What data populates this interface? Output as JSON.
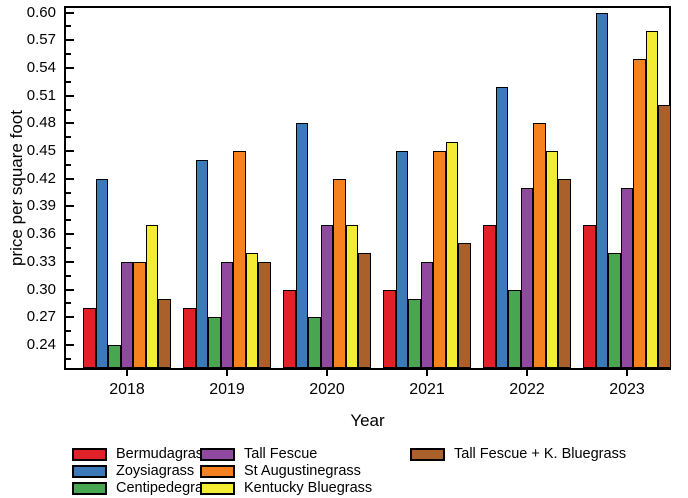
{
  "figure": {
    "background": "#ffffff",
    "frame_color": "#000000",
    "bar_edge_color": "#000000"
  },
  "chart_data": {
    "type": "bar",
    "title": "",
    "xlabel": "Year",
    "ylabel": "price per square foot",
    "categories": [
      "2018",
      "2019",
      "2020",
      "2021",
      "2022",
      "2023"
    ],
    "series": [
      {
        "name": "Bermudagrass",
        "color": "#e12128",
        "values": [
          0.28,
          0.28,
          0.3,
          0.3,
          0.37,
          0.37
        ]
      },
      {
        "name": "Zoysiagrass",
        "color": "#3c79b8",
        "values": [
          0.42,
          0.44,
          0.48,
          0.45,
          0.52,
          0.6
        ]
      },
      {
        "name": "Centipedegrass",
        "color": "#48a650",
        "values": [
          0.24,
          0.27,
          0.27,
          0.29,
          0.3,
          0.34
        ]
      },
      {
        "name": "Tall Fescue",
        "color": "#90499e",
        "values": [
          0.33,
          0.33,
          0.37,
          0.33,
          0.41,
          0.41
        ]
      },
      {
        "name": "St Augustinegrass",
        "color": "#f5811f",
        "values": [
          0.33,
          0.45,
          0.42,
          0.45,
          0.48,
          0.55
        ]
      },
      {
        "name": "Kentucky Bluegrass",
        "color": "#f4eb33",
        "values": [
          0.37,
          0.34,
          0.37,
          0.46,
          0.45,
          0.58
        ]
      },
      {
        "name": "Tall Fescue + K. Bluegrass",
        "color": "#a9602b",
        "values": [
          0.29,
          0.33,
          0.34,
          0.35,
          0.42,
          0.5
        ]
      }
    ],
    "ylim": [
      0.215,
      0.605
    ],
    "yticks": [
      0.24,
      0.27,
      0.3,
      0.33,
      0.36,
      0.39,
      0.42,
      0.45,
      0.48,
      0.51,
      0.54,
      0.57,
      0.6
    ],
    "ytick_decimals": 2,
    "grid": false,
    "legend_position": "bottom",
    "legend_columns": [
      [
        0,
        1,
        2
      ],
      [
        3,
        4,
        5
      ],
      [
        6
      ]
    ]
  }
}
